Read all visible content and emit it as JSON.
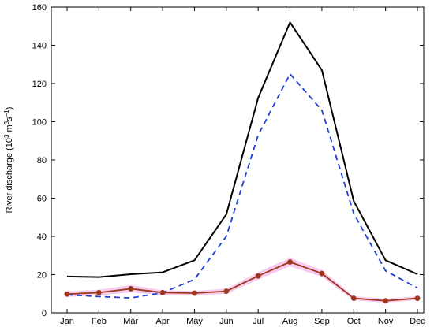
{
  "chart_data": {
    "type": "line",
    "title": "",
    "xlabel": "",
    "ylabel": "River discharge (10",
    "ylabel_exp1": "3",
    "ylabel_mid": " m",
    "ylabel_exp2": "3",
    "ylabel_mid2": "s",
    "ylabel_exp3": "−1",
    "ylabel_end": ")",
    "categories": [
      "Jan",
      "Feb",
      "Mar",
      "Apr",
      "May",
      "Jun",
      "Jul",
      "Aug",
      "Sep",
      "Oct",
      "Nov",
      "Dec"
    ],
    "ylim": [
      0,
      160
    ],
    "yticks": [
      0,
      20,
      40,
      60,
      80,
      100,
      120,
      140,
      160
    ],
    "grid": false,
    "legend": false,
    "series": [
      {
        "style": "solid",
        "color": "#000000",
        "values": [
          19,
          18.7,
          20.2,
          21.2,
          27.5,
          51.5,
          112.5,
          152,
          127,
          58.5,
          27.5,
          20.2
        ]
      },
      {
        "style": "dashed",
        "color": "#1f3fd8",
        "values": [
          9.5,
          8.5,
          7.8,
          10.5,
          17.5,
          40,
          93,
          125,
          106,
          52,
          22,
          13
        ]
      },
      {
        "style": "solid-markers",
        "color": "#a0361c",
        "marker_color": "#a0361c",
        "band_color": "#f5c6f0",
        "values": [
          9.8,
          10.6,
          12.6,
          10.6,
          10.3,
          11.3,
          19.3,
          26.6,
          20.6,
          7.6,
          6.3,
          7.6
        ],
        "band_low": [
          8.3,
          9.1,
          10.6,
          9.4,
          9.1,
          9.9,
          17.3,
          24.4,
          18.8,
          6.5,
          5.3,
          6.6
        ],
        "band_high": [
          11.3,
          12.1,
          14.6,
          11.8,
          11.5,
          12.7,
          21.3,
          28.8,
          22.4,
          8.7,
          7.3,
          8.6
        ]
      }
    ]
  }
}
